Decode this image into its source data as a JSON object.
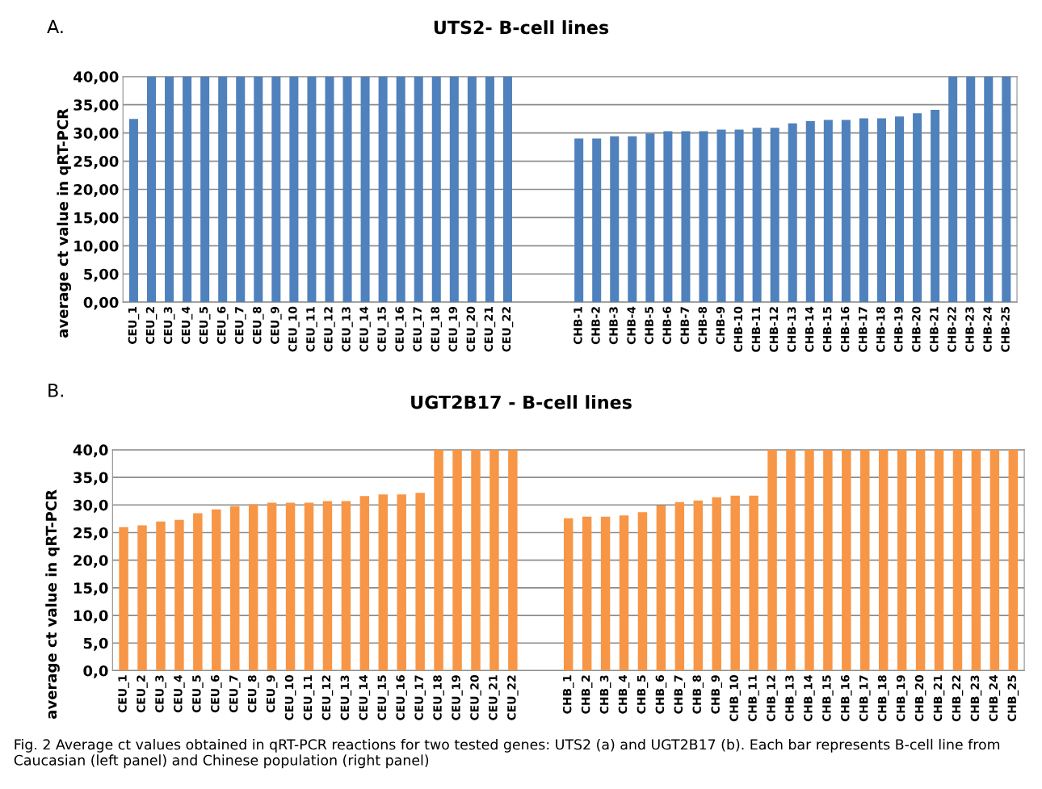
{
  "chart_data": [
    {
      "type": "bar",
      "title": "UTS2- B-cell lines",
      "ylabel": "average ct value in qRT-PCR",
      "annotations": [
        "A."
      ],
      "categories": [
        "CEU_1",
        "CEU_2",
        "CEU_3",
        "CEU_4",
        "CEU_5",
        "CEU_6",
        "CEU_7",
        "CEU_8",
        "CEU_9",
        "CEU_10",
        "CEU_11",
        "CEU_12",
        "CEU_13",
        "CEU_14",
        "CEU_15",
        "CEU_16",
        "CEU_17",
        "CEU_18",
        "CEU_19",
        "CEU_20",
        "CEU_21",
        "CEU_22",
        null,
        null,
        null,
        "CHB-1",
        "CHB-2",
        "CHB-3",
        "CHB-4",
        "CHB-5",
        "CHB-6",
        "CHB-7",
        "CHB-8",
        "CHB-9",
        "CHB-10",
        "CHB-11",
        "CHB-12",
        "CHB-13",
        "CHB-14",
        "CHB-15",
        "CHB-16",
        "CHB-17",
        "CHB-18",
        "CHB-19",
        "CHB-20",
        "CHB-21",
        "CHB-22",
        "CHB-23",
        "CHB-24",
        "CHB-25"
      ],
      "values": [
        32.5,
        40,
        40,
        40,
        40,
        40,
        40,
        40,
        40,
        40,
        40,
        40,
        40,
        40,
        40,
        40,
        40,
        40,
        40,
        40,
        40,
        40,
        null,
        null,
        null,
        29.0,
        29.0,
        29.4,
        29.4,
        29.9,
        30.3,
        30.3,
        30.3,
        30.6,
        30.6,
        30.9,
        30.9,
        31.7,
        32.1,
        32.3,
        32.3,
        32.6,
        32.6,
        32.9,
        33.5,
        34.1,
        40,
        40,
        40,
        40
      ],
      "color": "#4f81bd",
      "ylim": [
        0,
        40
      ],
      "yticks": [
        {
          "value": 0,
          "label": "0,00"
        },
        {
          "value": 5,
          "label": "5,00"
        },
        {
          "value": 10,
          "label": "10,00"
        },
        {
          "value": 15,
          "label": "15,00"
        },
        {
          "value": 20,
          "label": "20,00"
        },
        {
          "value": 25,
          "label": "25,00"
        },
        {
          "value": 30,
          "label": "30,00"
        },
        {
          "value": 35,
          "label": "35,00"
        },
        {
          "value": 40,
          "label": "40,00"
        }
      ],
      "grid": "y"
    },
    {
      "type": "bar",
      "title": "UGT2B17 - B-cell lines",
      "ylabel": "average ct value in qRT-PCR",
      "annotations": [
        "B.",
        "Fig. 2 Average ct values obtained in qRT-PCR reactions for two tested genes: UTS2 (a) and UGT2B17 (b). Each bar represents B-cell line from Caucasian (left panel) and Chinese population (right panel)"
      ],
      "categories": [
        "CEU_1",
        "CEU_2",
        "CEU_3",
        "CEU_4",
        "CEU_5",
        "CEU_6",
        "CEU_7",
        "CEU_8",
        "CEU_9",
        "CEU_10",
        "CEU_11",
        "CEU_12",
        "CEU_13",
        "CEU_14",
        "CEU_15",
        "CEU_16",
        "CEU_17",
        "CEU_18",
        "CEU_19",
        "CEU_20",
        "CEU_21",
        "CEU_22",
        null,
        null,
        "CHB_1",
        "CHB_2",
        "CHB_3",
        "CHB_4",
        "CHB_5",
        "CHB_6",
        "CHB_7",
        "CHB_8",
        "CHB_9",
        "CHB_10",
        "CHB_11",
        "CHB_12",
        "CHB_13",
        "CHB_14",
        "CHB_15",
        "CHB_16",
        "CHB_17",
        "CHB_18",
        "CHB_19",
        "CHB_20",
        "CHB_21",
        "CHB_22",
        "CHB_23",
        "CHB_24",
        "CHB_25"
      ],
      "values": [
        26.0,
        26.3,
        27.0,
        27.3,
        28.5,
        29.2,
        29.8,
        30.1,
        30.4,
        30.4,
        30.4,
        30.7,
        30.7,
        31.6,
        31.9,
        31.9,
        32.2,
        40,
        40,
        40,
        40,
        40,
        null,
        null,
        27.6,
        27.9,
        27.9,
        28.1,
        28.7,
        29.9,
        30.5,
        30.8,
        31.4,
        31.7,
        31.7,
        40,
        40,
        40,
        40,
        40,
        40,
        40,
        40,
        40,
        40,
        40,
        40,
        40,
        40
      ],
      "color": "#f79646",
      "ylim": [
        0,
        40
      ],
      "yticks": [
        {
          "value": 0,
          "label": "0,0"
        },
        {
          "value": 5,
          "label": "5,0"
        },
        {
          "value": 10,
          "label": "10,0"
        },
        {
          "value": 15,
          "label": "15,0"
        },
        {
          "value": 20,
          "label": "20,0"
        },
        {
          "value": 25,
          "label": "25,0"
        },
        {
          "value": 30,
          "label": "30,0"
        },
        {
          "value": 35,
          "label": "35,0"
        },
        {
          "value": 40,
          "label": "40,0"
        }
      ],
      "grid": "y"
    }
  ]
}
